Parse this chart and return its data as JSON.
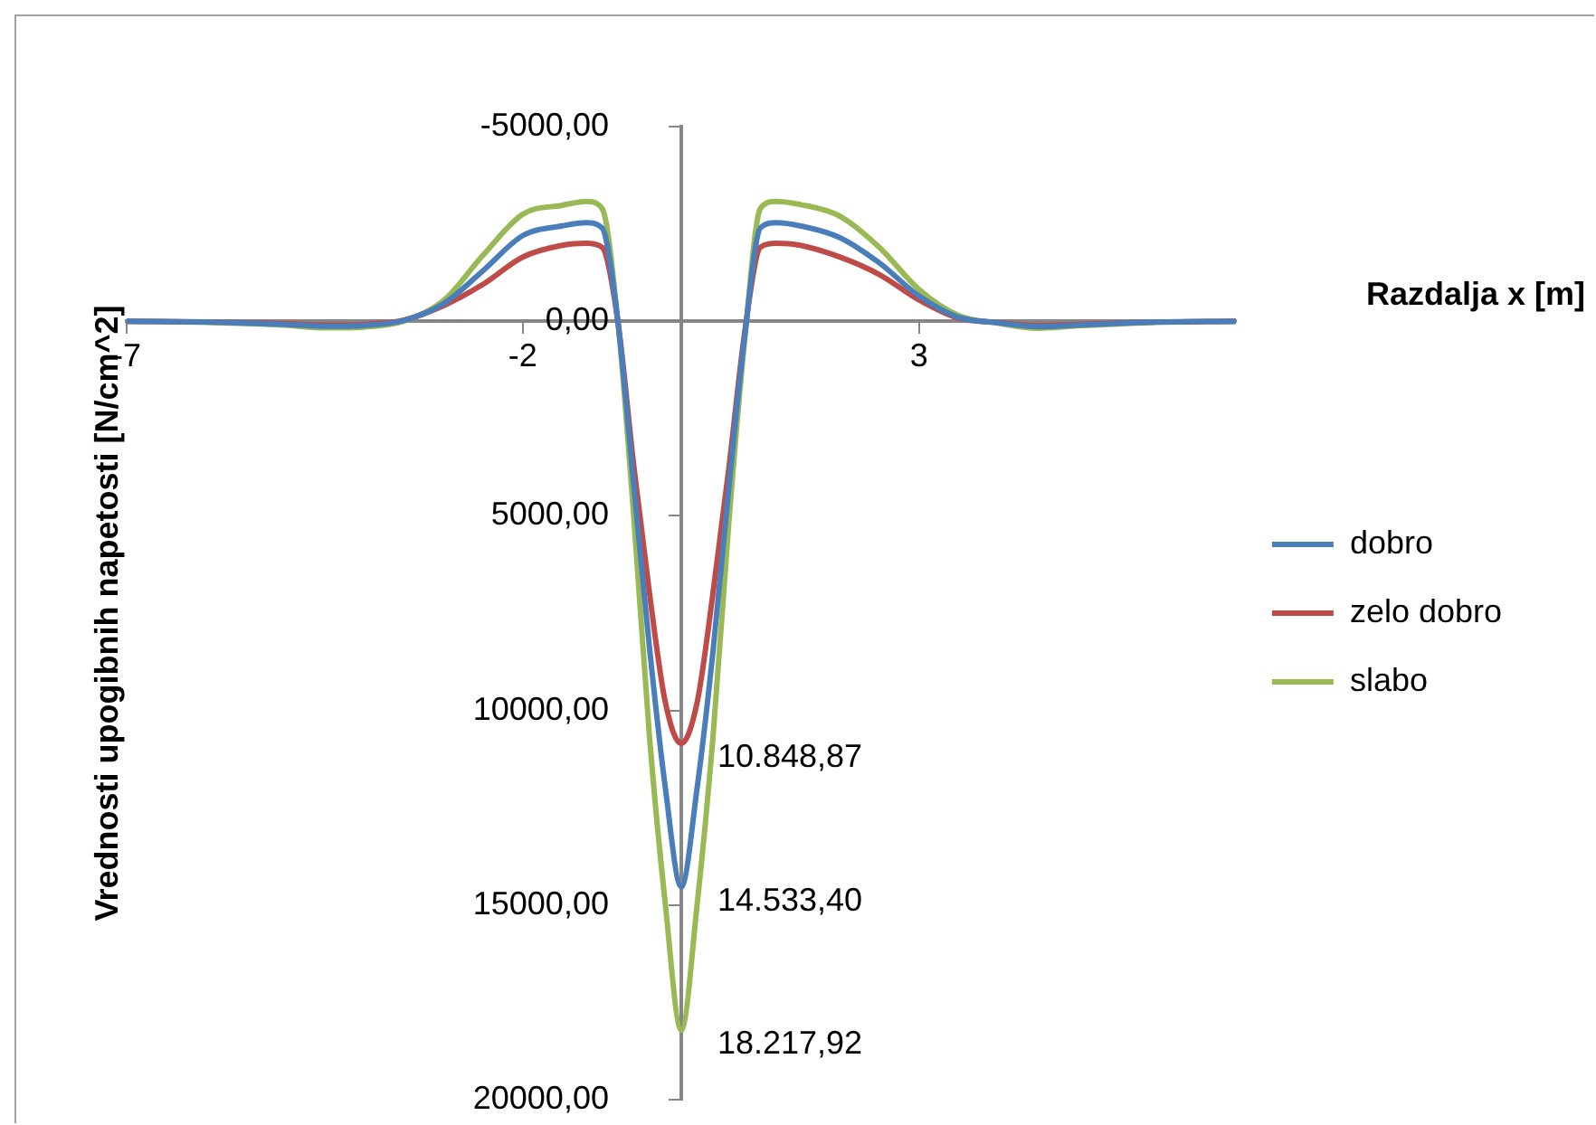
{
  "chart_data": {
    "type": "line",
    "xlabel": "Razdalja x [m]",
    "ylabel": "Vrednosti upogibnih napetosti [N/cm^2]",
    "xlim": [
      -7,
      7
    ],
    "xticks": [
      -7,
      -2,
      3
    ],
    "ylim": [
      20000,
      -5000
    ],
    "yticks": [
      {
        "value": -5000,
        "label": "-5000,00"
      },
      {
        "value": 0,
        "label": "0,00"
      },
      {
        "value": 5000,
        "label": "5000,00"
      },
      {
        "value": 10000,
        "label": "10000,00"
      },
      {
        "value": 15000,
        "label": "15000,00"
      },
      {
        "value": 20000,
        "label": "20000,00"
      }
    ],
    "x": [
      -7,
      -6,
      -5,
      -4.5,
      -4,
      -3.5,
      -3,
      -2.5,
      -2,
      -1.5,
      -1.2,
      -1,
      -0.8,
      -0.6,
      -0.4,
      -0.2,
      0,
      0.2,
      0.4,
      0.6,
      0.8,
      1,
      1.2,
      1.5,
      2,
      2.5,
      3,
      3.5,
      4,
      4.5,
      5,
      6,
      7
    ],
    "series": [
      {
        "name": "dobro",
        "color": "#4a7ebb",
        "values": [
          0,
          20,
          80,
          130,
          110,
          -20,
          -450,
          -1300,
          -2200,
          -2450,
          -2530,
          -2400,
          0,
          4200,
          8400,
          12000,
          14533.4,
          12000,
          8500,
          4300,
          400,
          -2400,
          -2530,
          -2450,
          -2150,
          -1500,
          -650,
          -100,
          40,
          140,
          100,
          20,
          0
        ],
        "value_labels": [
          null,
          null,
          null,
          null,
          null,
          null,
          null,
          null,
          null,
          null,
          null,
          null,
          null,
          null,
          null,
          null,
          "14.533,40",
          null,
          null,
          null,
          null,
          null,
          null,
          null,
          null,
          null,
          null,
          null,
          null,
          null,
          null,
          null,
          null
        ]
      },
      {
        "name": "zelo dobro",
        "color": "#be4b48",
        "values": [
          0,
          20,
          60,
          100,
          80,
          -30,
          -400,
          -950,
          -1650,
          -1950,
          -2000,
          -1900,
          0,
          3700,
          7000,
          9800,
          10848.87,
          9800,
          7000,
          3800,
          300,
          -1900,
          -2000,
          -1950,
          -1650,
          -1200,
          -550,
          -80,
          30,
          110,
          80,
          20,
          0
        ],
        "value_labels": [
          null,
          null,
          null,
          null,
          null,
          null,
          null,
          null,
          null,
          null,
          null,
          null,
          null,
          null,
          null,
          null,
          "10.848,87",
          null,
          null,
          null,
          null,
          null,
          null,
          null,
          null,
          null,
          null,
          null,
          null,
          null,
          null,
          null,
          null
        ]
      },
      {
        "name": "slabo",
        "color": "#98b954",
        "values": [
          0,
          30,
          100,
          170,
          150,
          0,
          -530,
          -1700,
          -2750,
          -2980,
          -3080,
          -2900,
          0,
          5000,
          10700,
          15000,
          18217.92,
          15000,
          10700,
          5200,
          500,
          -2900,
          -3080,
          -3000,
          -2700,
          -1900,
          -820,
          -150,
          50,
          180,
          120,
          30,
          0
        ],
        "value_labels": [
          null,
          null,
          null,
          null,
          null,
          null,
          null,
          null,
          null,
          null,
          null,
          null,
          null,
          null,
          null,
          null,
          "18.217,92",
          null,
          null,
          null,
          null,
          null,
          null,
          null,
          null,
          null,
          null,
          null,
          null,
          null,
          null,
          null,
          null
        ]
      }
    ],
    "grid": false,
    "legend": "right",
    "marker": "none",
    "line_style": "solid"
  }
}
